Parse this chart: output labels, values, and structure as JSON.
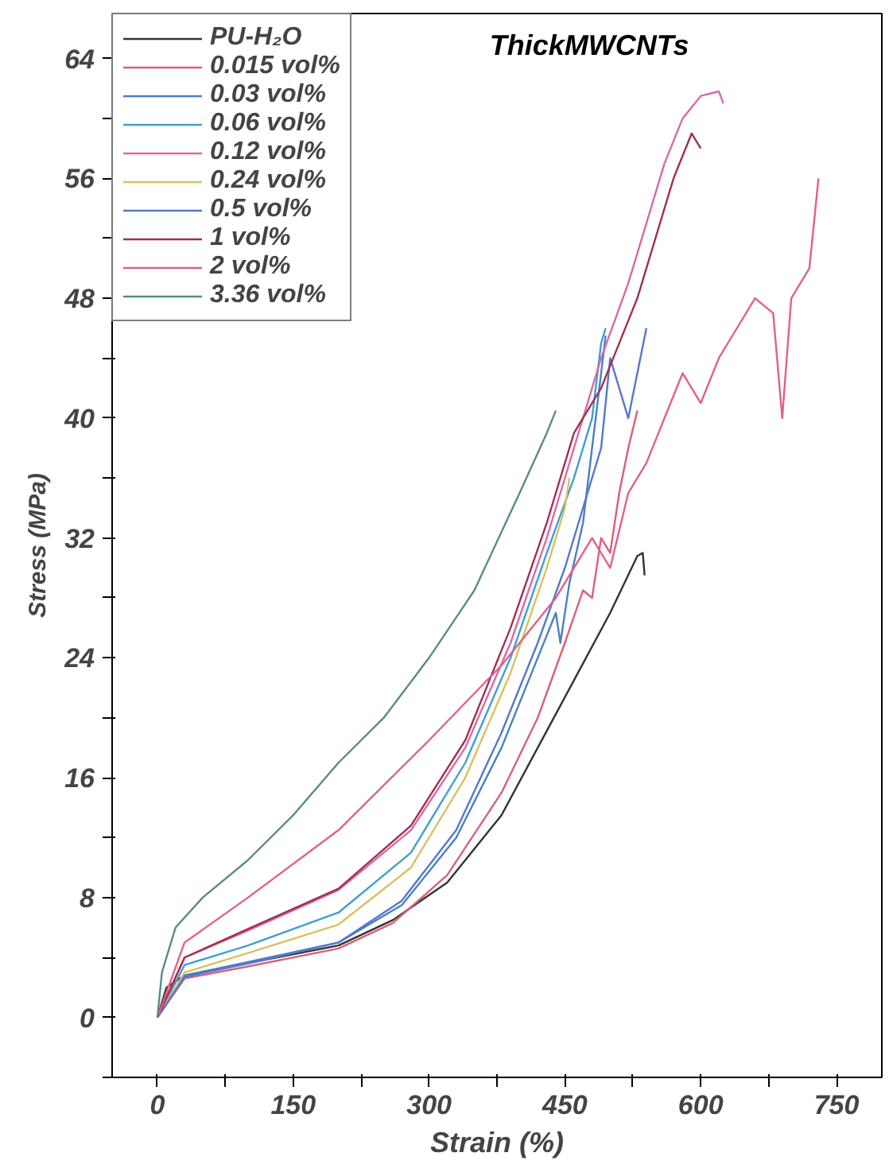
{
  "chart_data": {
    "type": "line",
    "title": "ThickMWCNTs",
    "xlabel": "Strain (%)",
    "ylabel": "Stress (MPa)",
    "xlim": [
      -50,
      800
    ],
    "ylim": [
      -4,
      67
    ],
    "xticks": [
      0,
      {
        "value": 75,
        "label": null
      },
      150,
      {
        "value": 225,
        "label": null
      },
      300,
      {
        "value": 375,
        "label": null
      },
      450,
      {
        "value": 525,
        "label": null
      },
      600,
      {
        "value": 675,
        "label": null
      },
      750
    ],
    "yticks": [
      {
        "value": -4,
        "label": null
      },
      0,
      {
        "value": 4,
        "label": null
      },
      8,
      {
        "value": 12,
        "label": null
      },
      16,
      {
        "value": 20,
        "label": null
      },
      24,
      {
        "value": 28,
        "label": null
      },
      32,
      {
        "value": 36,
        "label": null
      },
      40,
      {
        "value": 44,
        "label": null
      },
      48,
      {
        "value": 52,
        "label": null
      },
      56,
      {
        "value": 60,
        "label": null
      },
      64
    ],
    "grid": false,
    "legend": "top left",
    "marker": "none",
    "line_style": "solid",
    "series": [
      {
        "name": "PU-H₂O",
        "color": "#333333",
        "x": [
          0,
          10,
          30,
          200,
          260,
          320,
          380,
          420,
          460,
          500,
          530,
          536,
          538
        ],
        "values": [
          0,
          2,
          2.8,
          4.8,
          6.5,
          9,
          13.5,
          18,
          22.5,
          27,
          30.8,
          31,
          29.5
        ]
      },
      {
        "name": "0.015 vol%",
        "color": "#d9607a",
        "x": [
          0,
          30,
          100,
          200,
          260,
          320,
          380,
          420,
          450,
          470,
          480,
          490,
          500,
          510,
          520,
          530
        ],
        "values": [
          0,
          2.6,
          3.4,
          4.6,
          6.3,
          9.5,
          15,
          20,
          25,
          28.5,
          28,
          32,
          31,
          35,
          38,
          40.5
        ]
      },
      {
        "name": "0.03 vol%",
        "color": "#4a7fc4",
        "x": [
          0,
          30,
          100,
          200,
          270,
          330,
          380,
          420,
          440,
          445,
          455,
          470,
          480,
          490,
          495
        ],
        "values": [
          0,
          2.8,
          3.7,
          5,
          7.5,
          12,
          18,
          24,
          27,
          25,
          29,
          33,
          38,
          43,
          45.5
        ]
      },
      {
        "name": "0.06 vol%",
        "color": "#3f9fd0",
        "x": [
          0,
          30,
          100,
          200,
          280,
          340,
          390,
          430,
          460,
          480,
          490,
          495
        ],
        "values": [
          0,
          3.5,
          4.8,
          7,
          11,
          17,
          24,
          31,
          36,
          40,
          45,
          46
        ]
      },
      {
        "name": "0.12 vol%",
        "color": "#d66aa8",
        "x": [
          0,
          30,
          100,
          200,
          280,
          340,
          390,
          430,
          460,
          490,
          520,
          540,
          560,
          580,
          600,
          620,
          625
        ],
        "values": [
          0,
          4,
          5.8,
          8.5,
          12.5,
          18,
          25,
          32,
          38,
          44,
          49,
          53,
          57,
          60,
          61.5,
          61.8,
          61
        ]
      },
      {
        "name": "0.24 vol%",
        "color": "#d9c060",
        "x": [
          0,
          30,
          100,
          200,
          280,
          340,
          390,
          430,
          450,
          455
        ],
        "values": [
          0,
          3,
          4.3,
          6.2,
          10,
          16,
          23,
          30,
          34,
          36
        ]
      },
      {
        "name": "0.5 vol%",
        "color": "#5577cc",
        "x": [
          0,
          30,
          100,
          200,
          270,
          330,
          380,
          420,
          450,
          470,
          490,
          500,
          510,
          520,
          530,
          540
        ],
        "values": [
          0,
          2.7,
          3.6,
          5,
          7.8,
          12.5,
          19,
          25,
          30,
          34,
          38,
          44,
          42,
          40,
          43,
          46
        ]
      },
      {
        "name": "1 vol%",
        "color": "#a03050",
        "x": [
          0,
          30,
          100,
          200,
          280,
          340,
          390,
          430,
          460,
          490,
          510,
          530,
          550,
          570,
          590,
          600
        ],
        "values": [
          0,
          4,
          5.9,
          8.6,
          12.8,
          18.5,
          26,
          33,
          39,
          42,
          45,
          48,
          52,
          56,
          59,
          58
        ]
      },
      {
        "name": "2 vol%",
        "color": "#e0608a",
        "x": [
          0,
          30,
          100,
          200,
          300,
          380,
          440,
          480,
          500,
          520,
          540,
          560,
          580,
          600,
          620,
          640,
          660,
          680,
          690,
          700,
          720,
          730
        ],
        "values": [
          0,
          5,
          8,
          12.5,
          18.5,
          23.5,
          28,
          32,
          30,
          35,
          37,
          40,
          43,
          41,
          44,
          46,
          48,
          47,
          40,
          48,
          50,
          56
        ]
      },
      {
        "name": "3.36 vol%",
        "color": "#5a8a8a",
        "x": [
          0,
          5,
          20,
          50,
          100,
          150,
          200,
          250,
          300,
          350,
          400,
          430,
          440
        ],
        "values": [
          0,
          3,
          6,
          8,
          10.5,
          13.5,
          17,
          20,
          24,
          28.5,
          35,
          39,
          40.5
        ]
      }
    ]
  }
}
